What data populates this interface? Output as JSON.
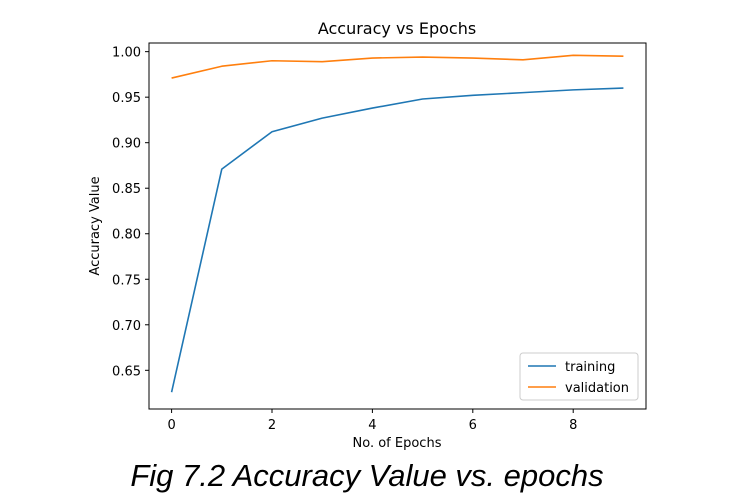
{
  "chart_data": {
    "type": "line",
    "title": "Accuracy vs Epochs",
    "xlabel": "No. of Epochs",
    "ylabel": "Accuracy Value",
    "x": [
      0,
      1,
      2,
      3,
      4,
      5,
      6,
      7,
      8,
      9
    ],
    "xlim": [
      -0.45,
      9.45
    ],
    "ylim": [
      0.6075,
      1.0095
    ],
    "xticks": [
      0,
      2,
      4,
      6,
      8
    ],
    "yticks": [
      0.65,
      0.7,
      0.75,
      0.8,
      0.85,
      0.9,
      0.95,
      1.0
    ],
    "ytick_labels": [
      "0.65",
      "0.70",
      "0.75",
      "0.80",
      "0.85",
      "0.90",
      "0.95",
      "1.00"
    ],
    "grid": false,
    "legend_position": "lower-right",
    "series": [
      {
        "name": "training",
        "color": "#1f77b4",
        "values": [
          0.626,
          0.871,
          0.912,
          0.927,
          0.938,
          0.948,
          0.952,
          0.955,
          0.958,
          0.96
        ]
      },
      {
        "name": "validation",
        "color": "#ff7f0e",
        "values": [
          0.971,
          0.984,
          0.99,
          0.989,
          0.993,
          0.994,
          0.993,
          0.991,
          0.996,
          0.995
        ]
      }
    ]
  },
  "caption": "Fig 7.2 Accuracy Value vs. epochs"
}
